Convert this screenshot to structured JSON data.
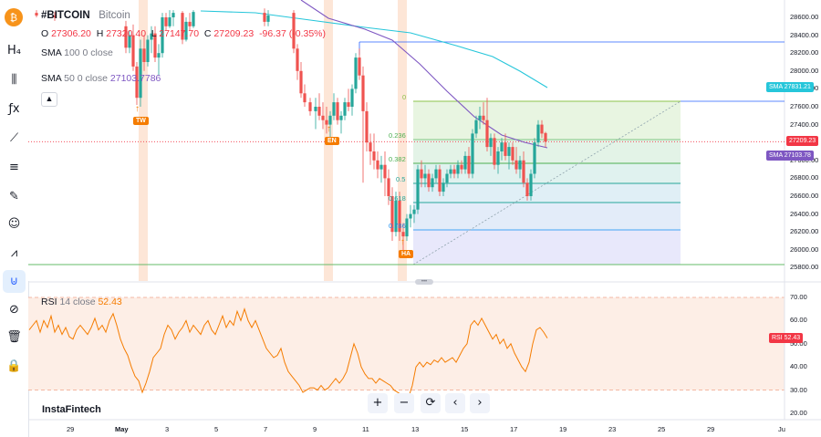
{
  "toolbar": {
    "items": [
      {
        "icon": "bitcoin-icon",
        "glyph": "₿",
        "active": false
      },
      {
        "icon": "h4-timeframe-icon",
        "glyph": "H₄",
        "active": false
      },
      {
        "icon": "candles-icon",
        "glyph": "⫼",
        "active": false
      },
      {
        "icon": "function-icon",
        "glyph": "ƒx",
        "active": false
      },
      {
        "icon": "trend-line-icon",
        "glyph": "⟋",
        "active": false
      },
      {
        "icon": "fib-tool-icon",
        "glyph": "≡",
        "active": false
      },
      {
        "icon": "brush-icon",
        "glyph": "✎",
        "active": false
      },
      {
        "icon": "emoji-icon",
        "glyph": "☺",
        "active": false
      },
      {
        "icon": "pattern-icon",
        "glyph": "⩘",
        "active": false
      },
      {
        "icon": "magnet-icon",
        "glyph": "⊍",
        "active": true
      },
      {
        "icon": "eye-off-icon",
        "glyph": "⊘",
        "active": false
      },
      {
        "icon": "trash-icon",
        "glyph": "🗑",
        "active": false
      },
      {
        "icon": "lock-icon",
        "glyph": "🔒",
        "active": false
      }
    ]
  },
  "legend": {
    "symbol": "#BITCOIN",
    "description": "Bitcoin",
    "o_label": "O",
    "o_value": "27306.20",
    "h_label": "H",
    "h_value": "27320.40",
    "l_label": "L",
    "l_value": "27147.70",
    "c_label": "C",
    "c_value": "27209.23",
    "change": "-96.37 (-0.35%)",
    "sma100_name": "SMA",
    "sma100_params": "100 0 close",
    "sma50_name": "SMA",
    "sma50_params": "50 0 close",
    "sma50_value": "27103.7786",
    "rsi_name": "RSI",
    "rsi_params": "14 close",
    "rsi_value": "52.43"
  },
  "price_axis": [
    "28600.00",
    "28400.00",
    "28200.00",
    "28000.00",
    "27800.00",
    "27600.00",
    "27400.00",
    "27200.00",
    "27000.00",
    "26800.00",
    "26600.00",
    "26400.00",
    "26200.00",
    "26000.00",
    "25800.00"
  ],
  "rsi_axis": [
    "70.00",
    "60.00",
    "50.00",
    "40.00",
    "30.00",
    "20.00"
  ],
  "time_axis": [
    "29",
    "May",
    "3",
    "5",
    "7",
    "9",
    "11",
    "13",
    "15",
    "17",
    "19",
    "23",
    "25",
    "29",
    "Ju"
  ],
  "price_tags": {
    "sma100_label": "SMA",
    "sma100_value": "27831.21",
    "close_value": "27209.23",
    "sma50_label": "SMA",
    "sma50_value": "27103.78",
    "rsi_label": "RSI",
    "rsi_value": "52.43"
  },
  "fib_levels": [
    "0",
    "0.236",
    "0.382",
    "0.5",
    "0.618",
    "0.786"
  ],
  "markers": [
    "TW",
    "EN",
    "HA"
  ],
  "brand": "InstaFintech",
  "nav": {
    "zoom_in": "+",
    "zoom_out": "−",
    "reset": "⟳",
    "back": "‹",
    "forward": "›"
  },
  "pane_handle": "•••",
  "colors": {
    "up": "#26a69a",
    "down": "#ef5350",
    "sma100": "#26c6da",
    "sma50": "#7e57c2",
    "rsi": "#f57c00",
    "marker": "#f57c00",
    "close_line": "#f23645"
  }
}
